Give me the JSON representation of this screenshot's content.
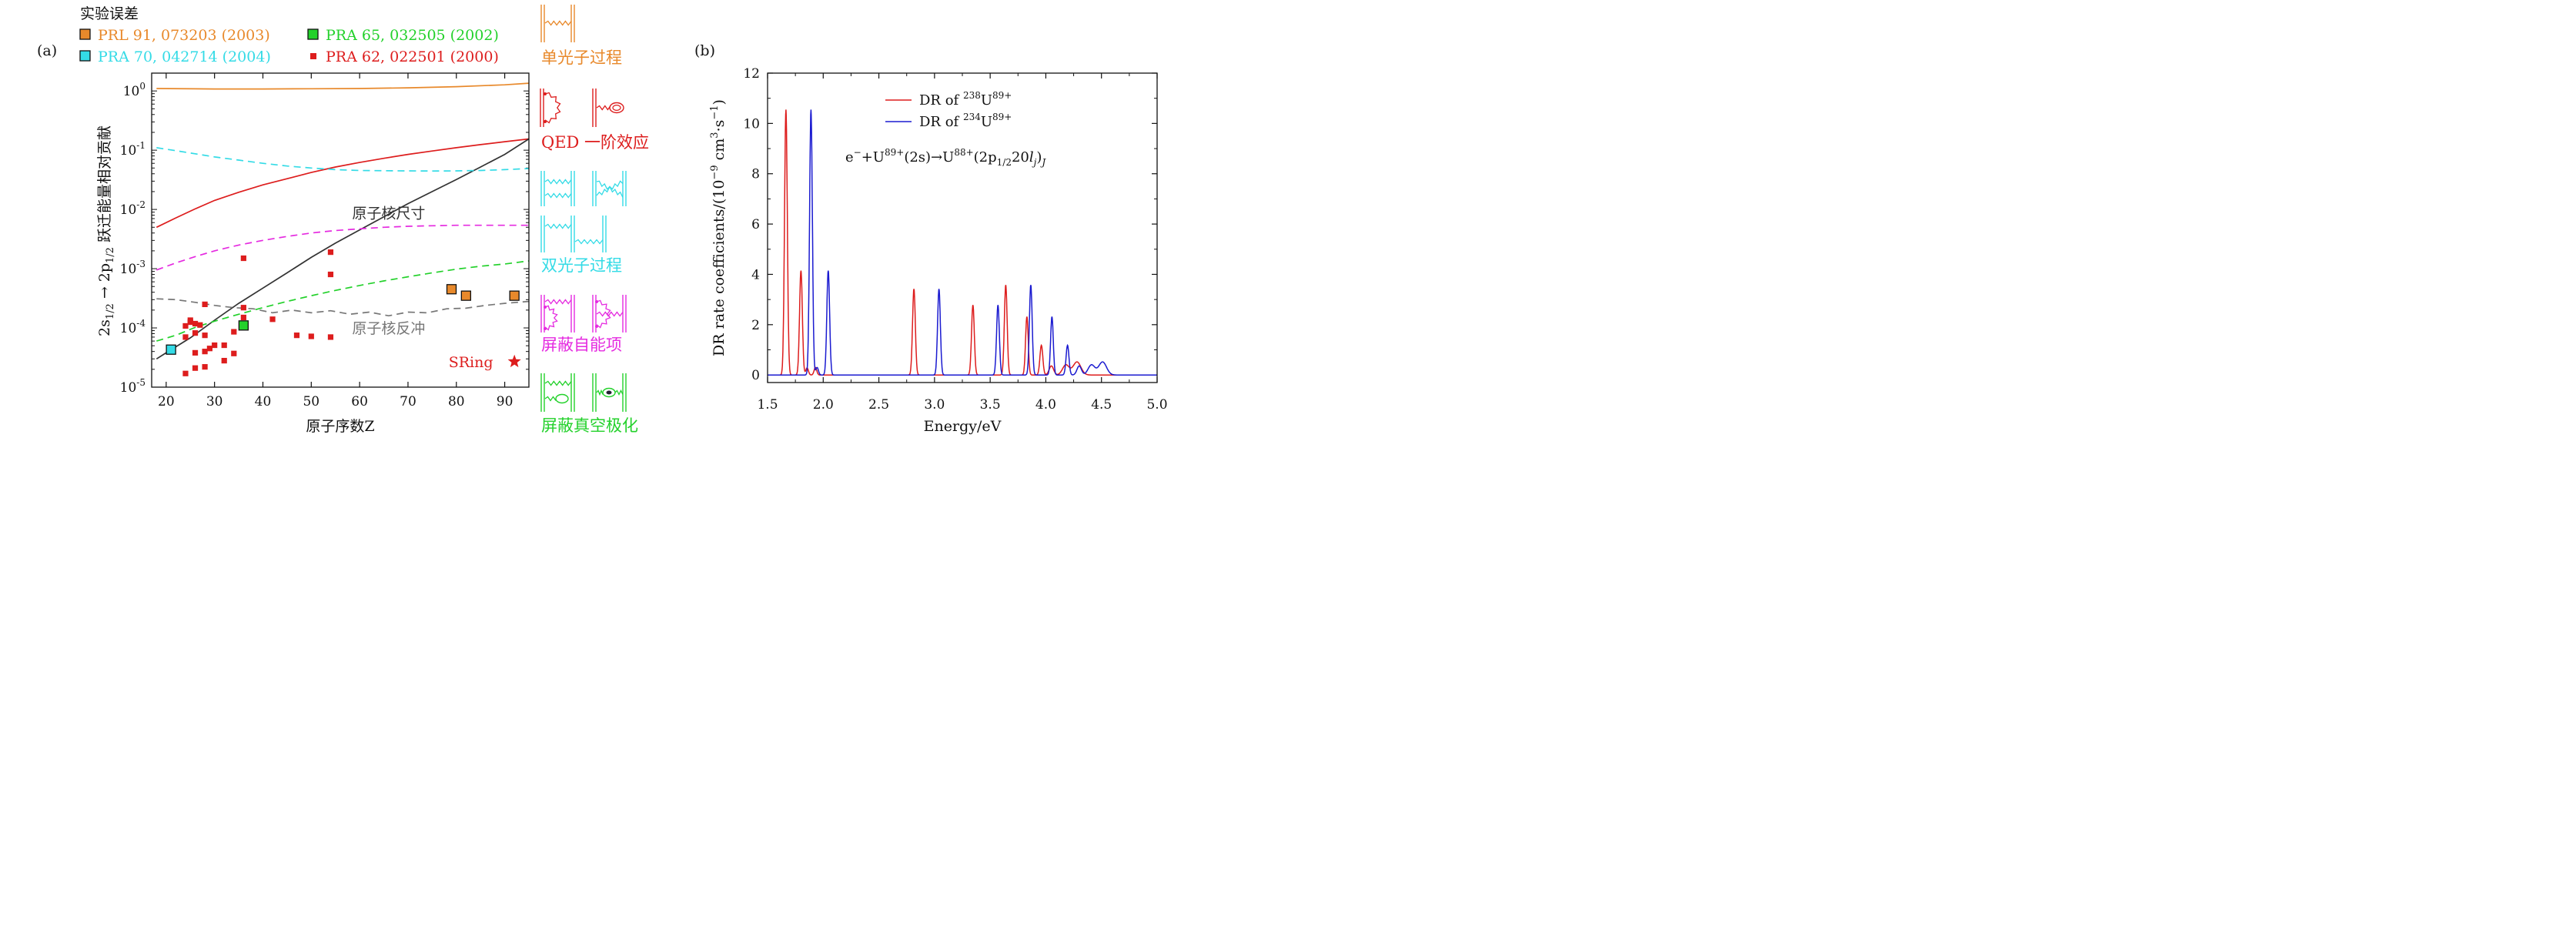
{
  "colors": {
    "orange": "#e8892b",
    "red": "#dd1d1d",
    "cyan": "#34dbe6",
    "magenta": "#e52be0",
    "green": "#23d12b",
    "gray": "#777777",
    "black": "#333333",
    "blue": "#1b1bd0"
  },
  "chart_data": [
    {
      "type": "line",
      "panel_label": "(a)",
      "title": "",
      "xlabel": "原子序数Z",
      "ylabel": "2s1/2 → 2p1/2 跃迁能量相对贡献",
      "xlim": [
        17,
        95
      ],
      "ylim": [
        1e-05,
        2
      ],
      "yscale": "log",
      "x_ticks": [
        20,
        30,
        40,
        50,
        60,
        70,
        80,
        90
      ],
      "y_ticks": [
        {
          "value": 1,
          "label": "10^0"
        },
        {
          "value": 0.1,
          "label": "10^-1"
        },
        {
          "value": 0.01,
          "label": "10^-2"
        },
        {
          "value": 0.001,
          "label": "10^-3"
        },
        {
          "value": 0.0001,
          "label": "10^-4"
        },
        {
          "value": 1e-05,
          "label": "10^-5"
        }
      ],
      "legend_title": "实验误差",
      "legend": [
        {
          "label": "PRL 91, 073203 (2003)",
          "color_key": "orange",
          "marker": "square-outlined"
        },
        {
          "label": "PRA 65, 032505 (2002)",
          "color_key": "green",
          "marker": "square-outlined"
        },
        {
          "label": "PRA 70, 042714 (2004)",
          "color_key": "cyan",
          "marker": "square-outlined"
        },
        {
          "label": "PRA 62, 022501 (2000)",
          "color_key": "red",
          "marker": "square-small"
        }
      ],
      "series": [
        {
          "name": "单光子过程",
          "color_key": "orange",
          "style": "solid",
          "x": [
            18,
            30,
            40,
            50,
            60,
            70,
            80,
            90,
            95
          ],
          "y": [
            1.1,
            1.08,
            1.08,
            1.09,
            1.1,
            1.13,
            1.18,
            1.27,
            1.35
          ]
        },
        {
          "name": "QED 一阶效应",
          "color_key": "red",
          "style": "solid",
          "x": [
            18,
            22,
            26,
            30,
            35,
            40,
            45,
            50,
            55,
            60,
            65,
            70,
            75,
            80,
            85,
            90,
            95
          ],
          "y": [
            0.005,
            0.0072,
            0.0102,
            0.0142,
            0.0195,
            0.026,
            0.033,
            0.042,
            0.052,
            0.062,
            0.073,
            0.085,
            0.097,
            0.11,
            0.124,
            0.139,
            0.155
          ]
        },
        {
          "name": "原子核尺寸",
          "color_key": "black",
          "style": "solid",
          "x": [
            18,
            20,
            25,
            30,
            35,
            40,
            45,
            50,
            55,
            60,
            65,
            70,
            75,
            80,
            85,
            90,
            95
          ],
          "y": [
            3e-05,
            3.8e-05,
            6.8e-05,
            0.000135,
            0.00026,
            0.00047,
            0.00085,
            0.00155,
            0.0027,
            0.0045,
            0.0075,
            0.0125,
            0.02,
            0.032,
            0.052,
            0.085,
            0.155
          ]
        },
        {
          "name": "双光子过程",
          "color_key": "cyan",
          "style": "dashed",
          "x": [
            18,
            22,
            26,
            30,
            35,
            40,
            45,
            50,
            55,
            60,
            65,
            70,
            75,
            80,
            85,
            90,
            95
          ],
          "y": [
            0.11,
            0.098,
            0.087,
            0.077,
            0.068,
            0.06,
            0.054,
            0.05,
            0.047,
            0.0455,
            0.045,
            0.0447,
            0.0445,
            0.0448,
            0.0455,
            0.047,
            0.049
          ]
        },
        {
          "name": "屏蔽自能项",
          "color_key": "magenta",
          "style": "dashed",
          "x": [
            18,
            22,
            26,
            30,
            35,
            40,
            45,
            50,
            55,
            60,
            65,
            70,
            75,
            80,
            85,
            90,
            95
          ],
          "y": [
            0.00095,
            0.00125,
            0.0016,
            0.002,
            0.0025,
            0.003,
            0.0035,
            0.004,
            0.0044,
            0.0047,
            0.005,
            0.0052,
            0.0053,
            0.0054,
            0.0054,
            0.0054,
            0.0054
          ]
        },
        {
          "name": "屏蔽真空极化",
          "color_key": "green",
          "style": "dashed",
          "x": [
            18,
            22,
            26,
            30,
            35,
            40,
            45,
            50,
            55,
            60,
            65,
            70,
            75,
            80,
            85,
            90,
            95
          ],
          "y": [
            6e-05,
            7.5e-05,
            0.000102,
            0.00013,
            0.00017,
            0.00022,
            0.00028,
            0.00035,
            0.00043,
            0.00052,
            0.00062,
            0.00073,
            0.00085,
            0.00098,
            0.0011,
            0.0012,
            0.00135
          ]
        },
        {
          "name": "原子核反冲",
          "color_key": "gray",
          "style": "dashed",
          "x": [
            18,
            22,
            26,
            30,
            34,
            38,
            42,
            46,
            50,
            54,
            58,
            62,
            66,
            70,
            74,
            78,
            82,
            86,
            90,
            95
          ],
          "y": [
            0.00031,
            0.0003,
            0.00027,
            0.00024,
            0.00022,
            0.00021,
            0.00018,
            0.0002,
            0.00018,
            0.000195,
            0.00017,
            0.000185,
            0.00016,
            0.000185,
            0.00018,
            0.00021,
            0.000215,
            0.00024,
            0.00026,
            0.00028
          ]
        }
      ],
      "markers": [
        {
          "legend": "PRL 91, 073203 (2003)",
          "color_key": "orange",
          "points": [
            {
              "x": 79,
              "y": 0.00045
            },
            {
              "x": 82,
              "y": 0.00035
            },
            {
              "x": 92,
              "y": 0.00035
            }
          ]
        },
        {
          "legend": "PRA 65, 032505 (2002)",
          "color_key": "green",
          "points": [
            {
              "x": 36,
              "y": 0.00011
            }
          ]
        },
        {
          "legend": "PRA 70, 042714 (2004)",
          "color_key": "cyan",
          "points": [
            {
              "x": 21,
              "y": 4.3e-05
            }
          ]
        },
        {
          "legend": "PRA 62, 022501 (2000)",
          "color_key": "red",
          "points": [
            {
              "x": 24,
              "y": 1.7e-05
            },
            {
              "x": 24,
              "y": 7e-05
            },
            {
              "x": 24,
              "y": 0.000108
            },
            {
              "x": 25,
              "y": 0.000125
            },
            {
              "x": 25,
              "y": 0.000135
            },
            {
              "x": 26,
              "y": 2.1e-05
            },
            {
              "x": 26,
              "y": 3.8e-05
            },
            {
              "x": 26,
              "y": 8.2e-05
            },
            {
              "x": 26,
              "y": 0.000118
            },
            {
              "x": 27,
              "y": 0.000112
            },
            {
              "x": 28,
              "y": 2.2e-05
            },
            {
              "x": 28,
              "y": 4e-05
            },
            {
              "x": 28,
              "y": 7.5e-05
            },
            {
              "x": 28,
              "y": 0.00025
            },
            {
              "x": 29,
              "y": 4.5e-05
            },
            {
              "x": 30,
              "y": 5.1e-05
            },
            {
              "x": 32,
              "y": 5.1e-05
            },
            {
              "x": 32,
              "y": 2.8e-05
            },
            {
              "x": 34,
              "y": 8.6e-05
            },
            {
              "x": 34,
              "y": 3.7e-05
            },
            {
              "x": 36,
              "y": 0.00015
            },
            {
              "x": 36,
              "y": 0.00022
            },
            {
              "x": 36,
              "y": 0.0015
            },
            {
              "x": 42,
              "y": 0.00014
            },
            {
              "x": 47,
              "y": 7.5e-05
            },
            {
              "x": 50,
              "y": 7.2e-05
            },
            {
              "x": 54,
              "y": 7e-05
            },
            {
              "x": 54,
              "y": 0.0008
            },
            {
              "x": 54,
              "y": 0.0019
            }
          ]
        }
      ],
      "annotations": [
        {
          "text": "原子核尺寸",
          "x": 66,
          "y": 0.0088,
          "color_key": "black"
        },
        {
          "text": "原子核反冲",
          "x": 66,
          "y": 0.0001,
          "color_key": "gray"
        },
        {
          "text": "SRing",
          "x": 83,
          "y": 2.7e-05,
          "color_key": "red"
        }
      ],
      "star": {
        "x": 92,
        "y": 2.7e-05,
        "color_key": "red"
      },
      "side_labels": [
        {
          "text": "单光子过程",
          "color_key": "orange"
        },
        {
          "text": "QED 一阶效应",
          "color_key": "red"
        },
        {
          "text": "双光子过程",
          "color_key": "cyan"
        },
        {
          "text": "屏蔽自能项",
          "color_key": "magenta"
        },
        {
          "text": "屏蔽真空极化",
          "color_key": "green"
        }
      ]
    },
    {
      "type": "line",
      "panel_label": "(b)",
      "title": "",
      "xlabel": "Energy/eV",
      "ylabel": "DR rate coefficients/(10^-9 cm^3·s^-1)",
      "xlim": [
        1.5,
        5.0
      ],
      "ylim": [
        -0.3,
        12
      ],
      "x_ticks": [
        1.5,
        2.0,
        2.5,
        3.0,
        3.5,
        4.0,
        4.5,
        5.0
      ],
      "y_ticks": [
        0,
        2,
        4,
        6,
        8,
        10,
        12
      ],
      "legend_placement": "top-center",
      "annotation": "e⁻ + U⁸⁹⁺(2s) → U⁸⁸⁺(2p1/2 20lj)J",
      "series": [
        {
          "name": "DR of 238U89+",
          "color_key": "red",
          "peaks": [
            {
              "x": 1.665,
              "y": 10.55,
              "w": 0.0125
            },
            {
              "x": 1.8,
              "y": 4.15,
              "w": 0.0125
            },
            {
              "x": 1.855,
              "y": 0.28,
              "w": 0.012
            },
            {
              "x": 1.93,
              "y": 0.3,
              "w": 0.012
            },
            {
              "x": 2.815,
              "y": 3.42,
              "w": 0.0125
            },
            {
              "x": 3.345,
              "y": 2.78,
              "w": 0.0125
            },
            {
              "x": 3.64,
              "y": 3.58,
              "w": 0.0125
            },
            {
              "x": 3.83,
              "y": 2.32,
              "w": 0.012
            },
            {
              "x": 3.96,
              "y": 1.18,
              "w": 0.013
            },
            {
              "x": 4.05,
              "y": 0.36,
              "w": 0.02
            },
            {
              "x": 4.18,
              "y": 0.4,
              "w": 0.03
            },
            {
              "x": 4.28,
              "y": 0.52,
              "w": 0.035
            }
          ]
        },
        {
          "name": "DR of 234U89+",
          "color_key": "blue",
          "peaks": [
            {
              "x": 1.89,
              "y": 10.55,
              "w": 0.0125
            },
            {
              "x": 1.945,
              "y": 0.3,
              "w": 0.012
            },
            {
              "x": 2.045,
              "y": 4.15,
              "w": 0.0125
            },
            {
              "x": 3.04,
              "y": 3.42,
              "w": 0.0125
            },
            {
              "x": 3.57,
              "y": 2.78,
              "w": 0.0125
            },
            {
              "x": 3.865,
              "y": 3.58,
              "w": 0.0125
            },
            {
              "x": 4.055,
              "y": 2.32,
              "w": 0.012
            },
            {
              "x": 4.195,
              "y": 1.18,
              "w": 0.013
            },
            {
              "x": 4.3,
              "y": 0.36,
              "w": 0.02
            },
            {
              "x": 4.41,
              "y": 0.4,
              "w": 0.03
            },
            {
              "x": 4.51,
              "y": 0.52,
              "w": 0.035
            }
          ]
        }
      ]
    }
  ]
}
